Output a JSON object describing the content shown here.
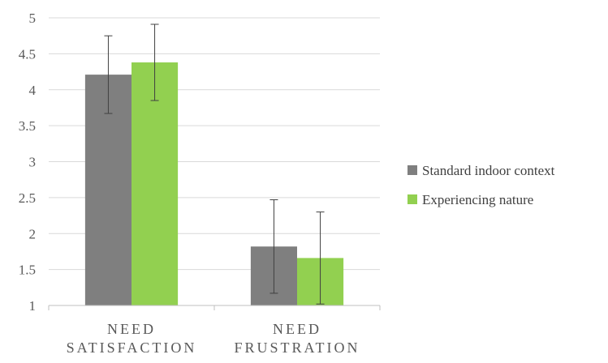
{
  "chart_data": {
    "type": "bar",
    "categories": [
      [
        "NEED",
        "SATISFACTION"
      ],
      [
        "NEED",
        "FRUSTRATION"
      ]
    ],
    "series": [
      {
        "name": "Standard indoor context",
        "color": "#7f7f7f",
        "values": [
          4.21,
          1.82
        ],
        "error": [
          0.54,
          0.65
        ]
      },
      {
        "name": "Experiencing nature",
        "color": "#92d050",
        "values": [
          4.38,
          1.66
        ],
        "error": [
          0.53,
          0.64
        ]
      }
    ],
    "ylim": [
      1,
      5
    ],
    "yticks": [
      "1",
      "1.5",
      "2",
      "2.5",
      "3",
      "3.5",
      "4",
      "4.5",
      "5"
    ],
    "grid": true,
    "legend": "right"
  }
}
